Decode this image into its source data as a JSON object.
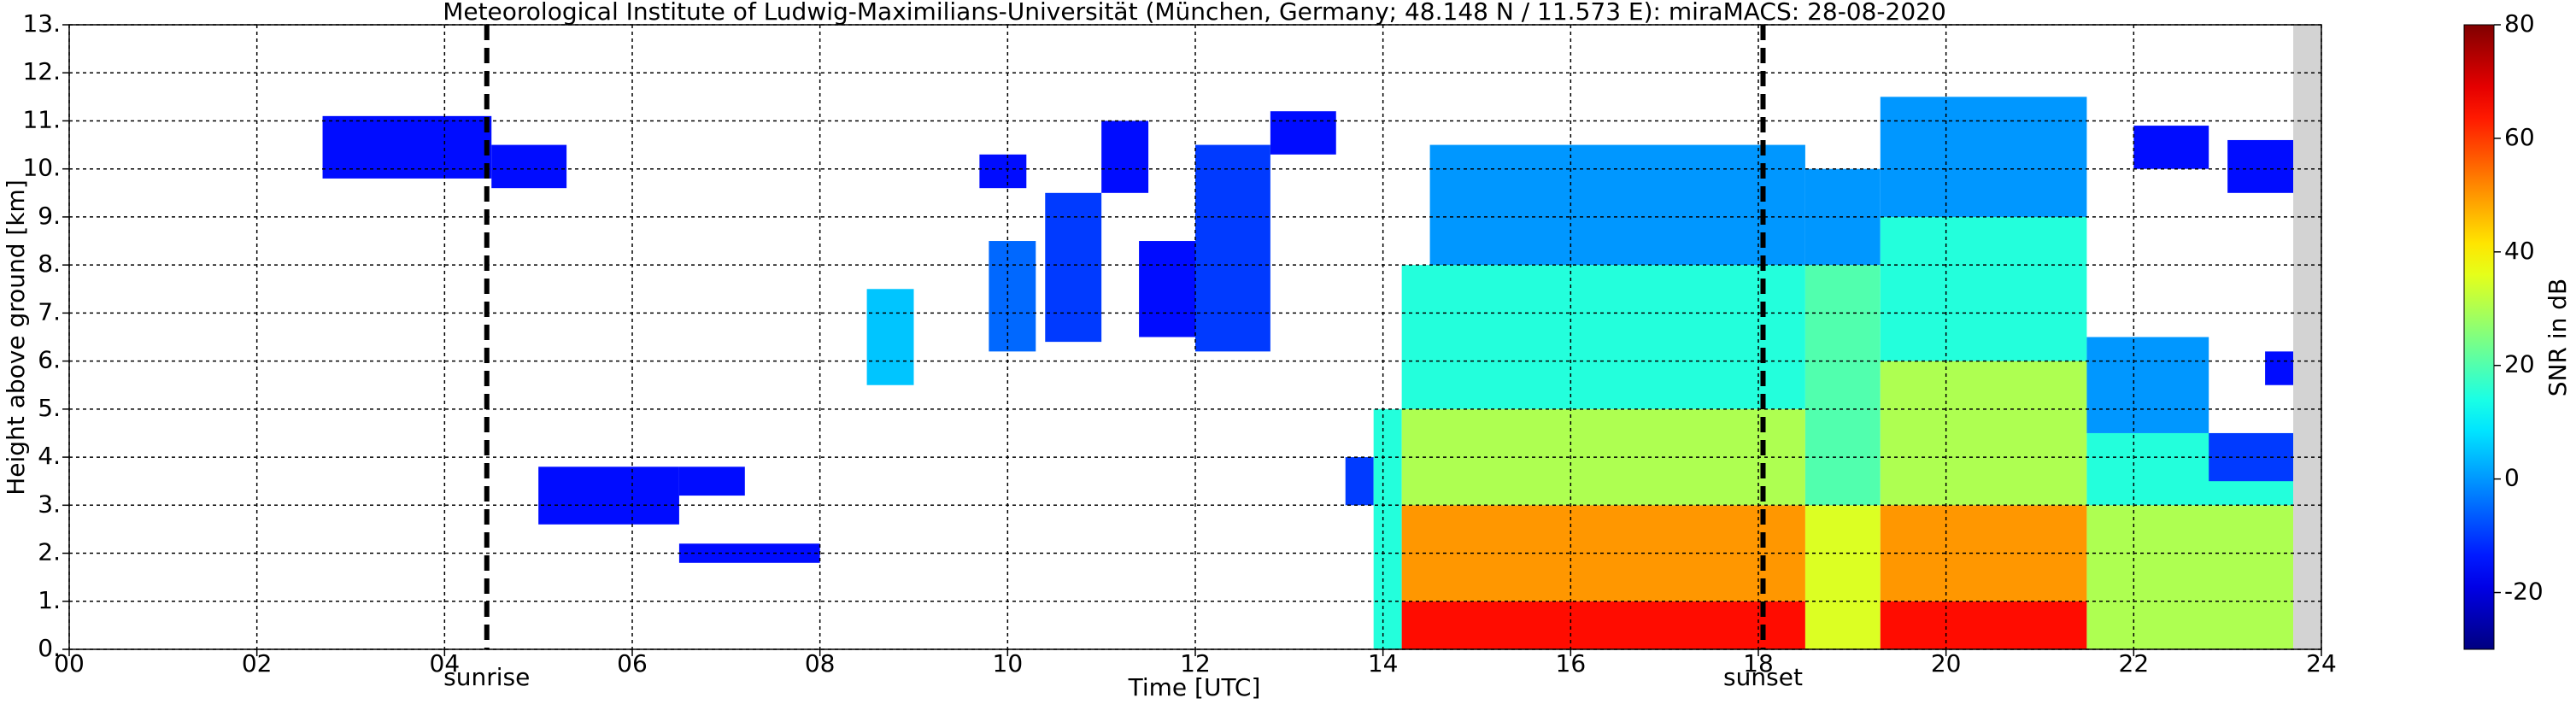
{
  "chart_data": {
    "type": "heatmap",
    "title": "Meteorological Institute of Ludwig-Maximilians-Universität (München, Germany; 48.148 N / 11.573 E):    miraMACS: 28-08-2020",
    "x_label": "Time [UTC]",
    "y_label": "Height above ground [km]",
    "xlim": [
      0,
      24
    ],
    "xticks": [
      {
        "value": 0,
        "label": "00"
      },
      {
        "value": 2,
        "label": "02"
      },
      {
        "value": 4,
        "label": "04"
      },
      {
        "value": 6,
        "label": "06"
      },
      {
        "value": 8,
        "label": "08"
      },
      {
        "value": 10,
        "label": "10"
      },
      12,
      14,
      16,
      18,
      20,
      22,
      24
    ],
    "ylim": [
      0,
      13
    ],
    "yticks": [
      {
        "value": 0,
        "label": "0."
      },
      {
        "value": 1,
        "label": "1."
      },
      {
        "value": 2,
        "label": "2."
      },
      {
        "value": 3,
        "label": "3."
      },
      {
        "value": 4,
        "label": "4."
      },
      {
        "value": 5,
        "label": "5."
      },
      {
        "value": 6,
        "label": "6."
      },
      {
        "value": 7,
        "label": "7."
      },
      {
        "value": 8,
        "label": "8."
      },
      {
        "value": 9,
        "label": "9."
      },
      {
        "value": 10,
        "label": "10."
      },
      {
        "value": 11,
        "label": "11."
      },
      {
        "value": 12,
        "label": "12."
      },
      {
        "value": 13,
        "label": "13."
      }
    ],
    "grid": true,
    "colormap": "jet",
    "colorbar": {
      "label": "SNR in dB",
      "lim": [
        -30,
        80
      ],
      "ticks": [
        -20,
        0,
        20,
        40,
        60,
        80
      ]
    },
    "annotations": [
      {
        "label": "sunrise",
        "x": 4.45
      },
      {
        "label": "sunset",
        "x": 18.05
      }
    ],
    "missing": [
      23.7,
      24
    ],
    "cells": [
      [
        2.7,
        4.5,
        9.8,
        11.1,
        -15
      ],
      [
        4.5,
        5.3,
        9.6,
        10.5,
        -15
      ],
      [
        5.0,
        6.5,
        2.6,
        3.8,
        -15
      ],
      [
        6.5,
        7.2,
        3.2,
        3.8,
        -15
      ],
      [
        6.5,
        8.0,
        1.8,
        2.2,
        -15
      ],
      [
        8.5,
        9.0,
        5.5,
        7.5,
        5
      ],
      [
        9.7,
        10.2,
        9.6,
        10.3,
        -15
      ],
      [
        9.8,
        10.3,
        6.2,
        8.5,
        -5
      ],
      [
        10.4,
        11.0,
        6.4,
        9.5,
        -10
      ],
      [
        11.0,
        11.5,
        9.5,
        11.0,
        -15
      ],
      [
        11.4,
        12.0,
        6.5,
        8.5,
        -15
      ],
      [
        12.0,
        12.8,
        6.2,
        10.5,
        -10
      ],
      [
        12.8,
        13.5,
        10.3,
        11.2,
        -15
      ],
      [
        13.6,
        13.9,
        3.0,
        4.0,
        -10
      ],
      [
        13.9,
        14.2,
        0,
        5.0,
        15
      ],
      [
        14.2,
        18.5,
        0,
        1.0,
        65
      ],
      [
        14.2,
        18.5,
        1.0,
        3.0,
        50
      ],
      [
        14.2,
        18.5,
        3.0,
        5.0,
        30
      ],
      [
        14.2,
        18.5,
        5.0,
        8.0,
        15
      ],
      [
        14.5,
        18.5,
        8.0,
        10.5,
        0
      ],
      [
        18.5,
        19.3,
        0,
        3.0,
        35
      ],
      [
        18.5,
        19.3,
        3.0,
        8.0,
        20
      ],
      [
        18.5,
        19.3,
        8.0,
        10.0,
        0
      ],
      [
        19.3,
        21.5,
        0,
        1.0,
        65
      ],
      [
        19.3,
        21.5,
        1.0,
        3.0,
        50
      ],
      [
        19.3,
        21.5,
        3.0,
        6.0,
        30
      ],
      [
        19.3,
        21.5,
        6.0,
        9.0,
        15
      ],
      [
        19.3,
        21.5,
        9.0,
        11.5,
        0
      ],
      [
        21.5,
        23.7,
        0,
        3.0,
        30
      ],
      [
        21.5,
        23.7,
        3.0,
        4.5,
        15
      ],
      [
        21.5,
        22.8,
        4.5,
        6.5,
        0
      ],
      [
        22.8,
        23.7,
        3.5,
        4.5,
        -10
      ],
      [
        23.4,
        23.7,
        5.5,
        6.2,
        -15
      ],
      [
        22.0,
        22.8,
        10.0,
        10.9,
        -15
      ],
      [
        23.0,
        23.7,
        9.5,
        10.6,
        -15
      ]
    ]
  }
}
